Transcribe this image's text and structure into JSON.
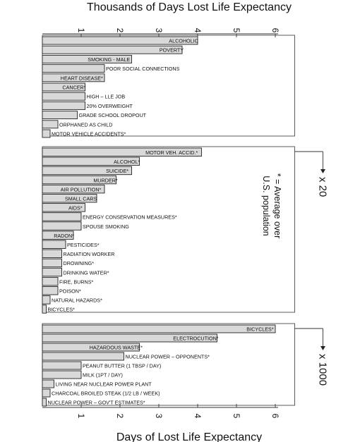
{
  "chart_data": {
    "type": "bar",
    "title": "Thousands of Days Lost Life Expectancy",
    "xlabel": "Days of Lost Life Expectancy",
    "xlim": [
      0,
      6.5
    ],
    "ticks": [
      "1",
      "2",
      "3",
      "4",
      "5",
      "6"
    ],
    "note": "* = Average over U.S. population",
    "panels": [
      {
        "multiplier": "",
        "categories": [
          "ALCOHOLIC",
          "POVERTY",
          "SMOKING - MALE",
          "POOR SOCIAL CONNECTIONS",
          "HEART DISEASE*",
          "CANCER*",
          "HIGH – LLE JOB",
          "20% OVERWEIGHT",
          "GRADE SCHOOL DROPOUT",
          "ORPHANED AS CHILD",
          "MOTOR VEHICLE ACCIDENTS*"
        ],
        "values": [
          4.0,
          3.6,
          2.3,
          1.6,
          1.6,
          1.1,
          1.1,
          1.1,
          0.9,
          0.4,
          0.2
        ]
      },
      {
        "multiplier": "x 20",
        "categories": [
          "MOTOR VEH. ACCID.*",
          "ALCOHOL*",
          "SUICIDE*",
          "MURDER*",
          "AIR POLLUTION*",
          "SMALL CARS",
          "AIDS*",
          "ENERGY CONSERVATION MEASURES*",
          "SPOUSE SMOKING",
          "RADON*",
          "PESTICIDES*",
          "RADIATION WORKER",
          "DROWNING*",
          "DRINKING WATER*",
          "FIRE, BURNS*",
          "POISON*",
          "NATURAL HAZARDS*",
          "BICYCLES*"
        ],
        "values": [
          4.1,
          2.5,
          2.3,
          1.9,
          1.6,
          1.4,
          1.1,
          1.0,
          1.0,
          0.8,
          0.6,
          0.5,
          0.5,
          0.5,
          0.4,
          0.4,
          0.2,
          0.1
        ]
      },
      {
        "multiplier": "x 1000",
        "categories": [
          "BICYCLES*",
          "ELECTROCUTION*",
          "HAZARDOUS WASTE*",
          "NUCLEAR POWER – OPPONENTS*",
          "PEANUT BUTTER (1 TBSP / DAY)",
          "MILK (1PT / DAY)",
          "LIVING NEAR NUCLEAR POWER PLANT",
          "CHARCOAL BROILED STEAK (1/2 LB / WEEK)",
          "NUCLEAR POWER – GOV'T ESTIMATES*"
        ],
        "values": [
          6.0,
          4.5,
          2.5,
          2.1,
          1.0,
          1.0,
          0.3,
          0.2,
          0.1
        ]
      }
    ]
  }
}
